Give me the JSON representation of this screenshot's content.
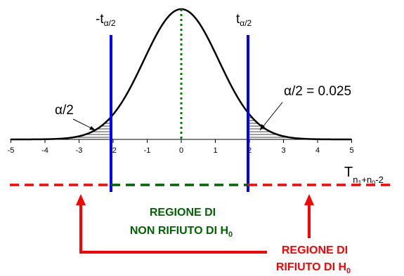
{
  "labels": {
    "neg_t": "-t",
    "pos_t": "t",
    "t_sub": "α/2",
    "left_tail": "α/2",
    "right_tail": "α/2 = 0.025",
    "dist_T": "T",
    "dist_sub_pre": "n",
    "dist_sub_1": "1",
    "dist_sub_plus_n": "+n",
    "dist_sub_0": "0",
    "dist_sub_tail": "-2",
    "accept_line1": "REGIONE DI",
    "accept_line2": "NON RIFIUTO DI H",
    "accept_sub": "0",
    "reject_line1": "REGIONE DI",
    "reject_line2": "RIFIUTO DI H",
    "reject_sub": "0"
  },
  "axis": {
    "ticks": [
      -5,
      -4,
      -3,
      -2,
      -1,
      0,
      1,
      2,
      3,
      4,
      5
    ]
  },
  "critical_value": 2,
  "colors": {
    "curve": "#000000",
    "critical": "#0000ff",
    "center": "#008000",
    "accept": "#006400",
    "reject": "#ff0000"
  }
}
